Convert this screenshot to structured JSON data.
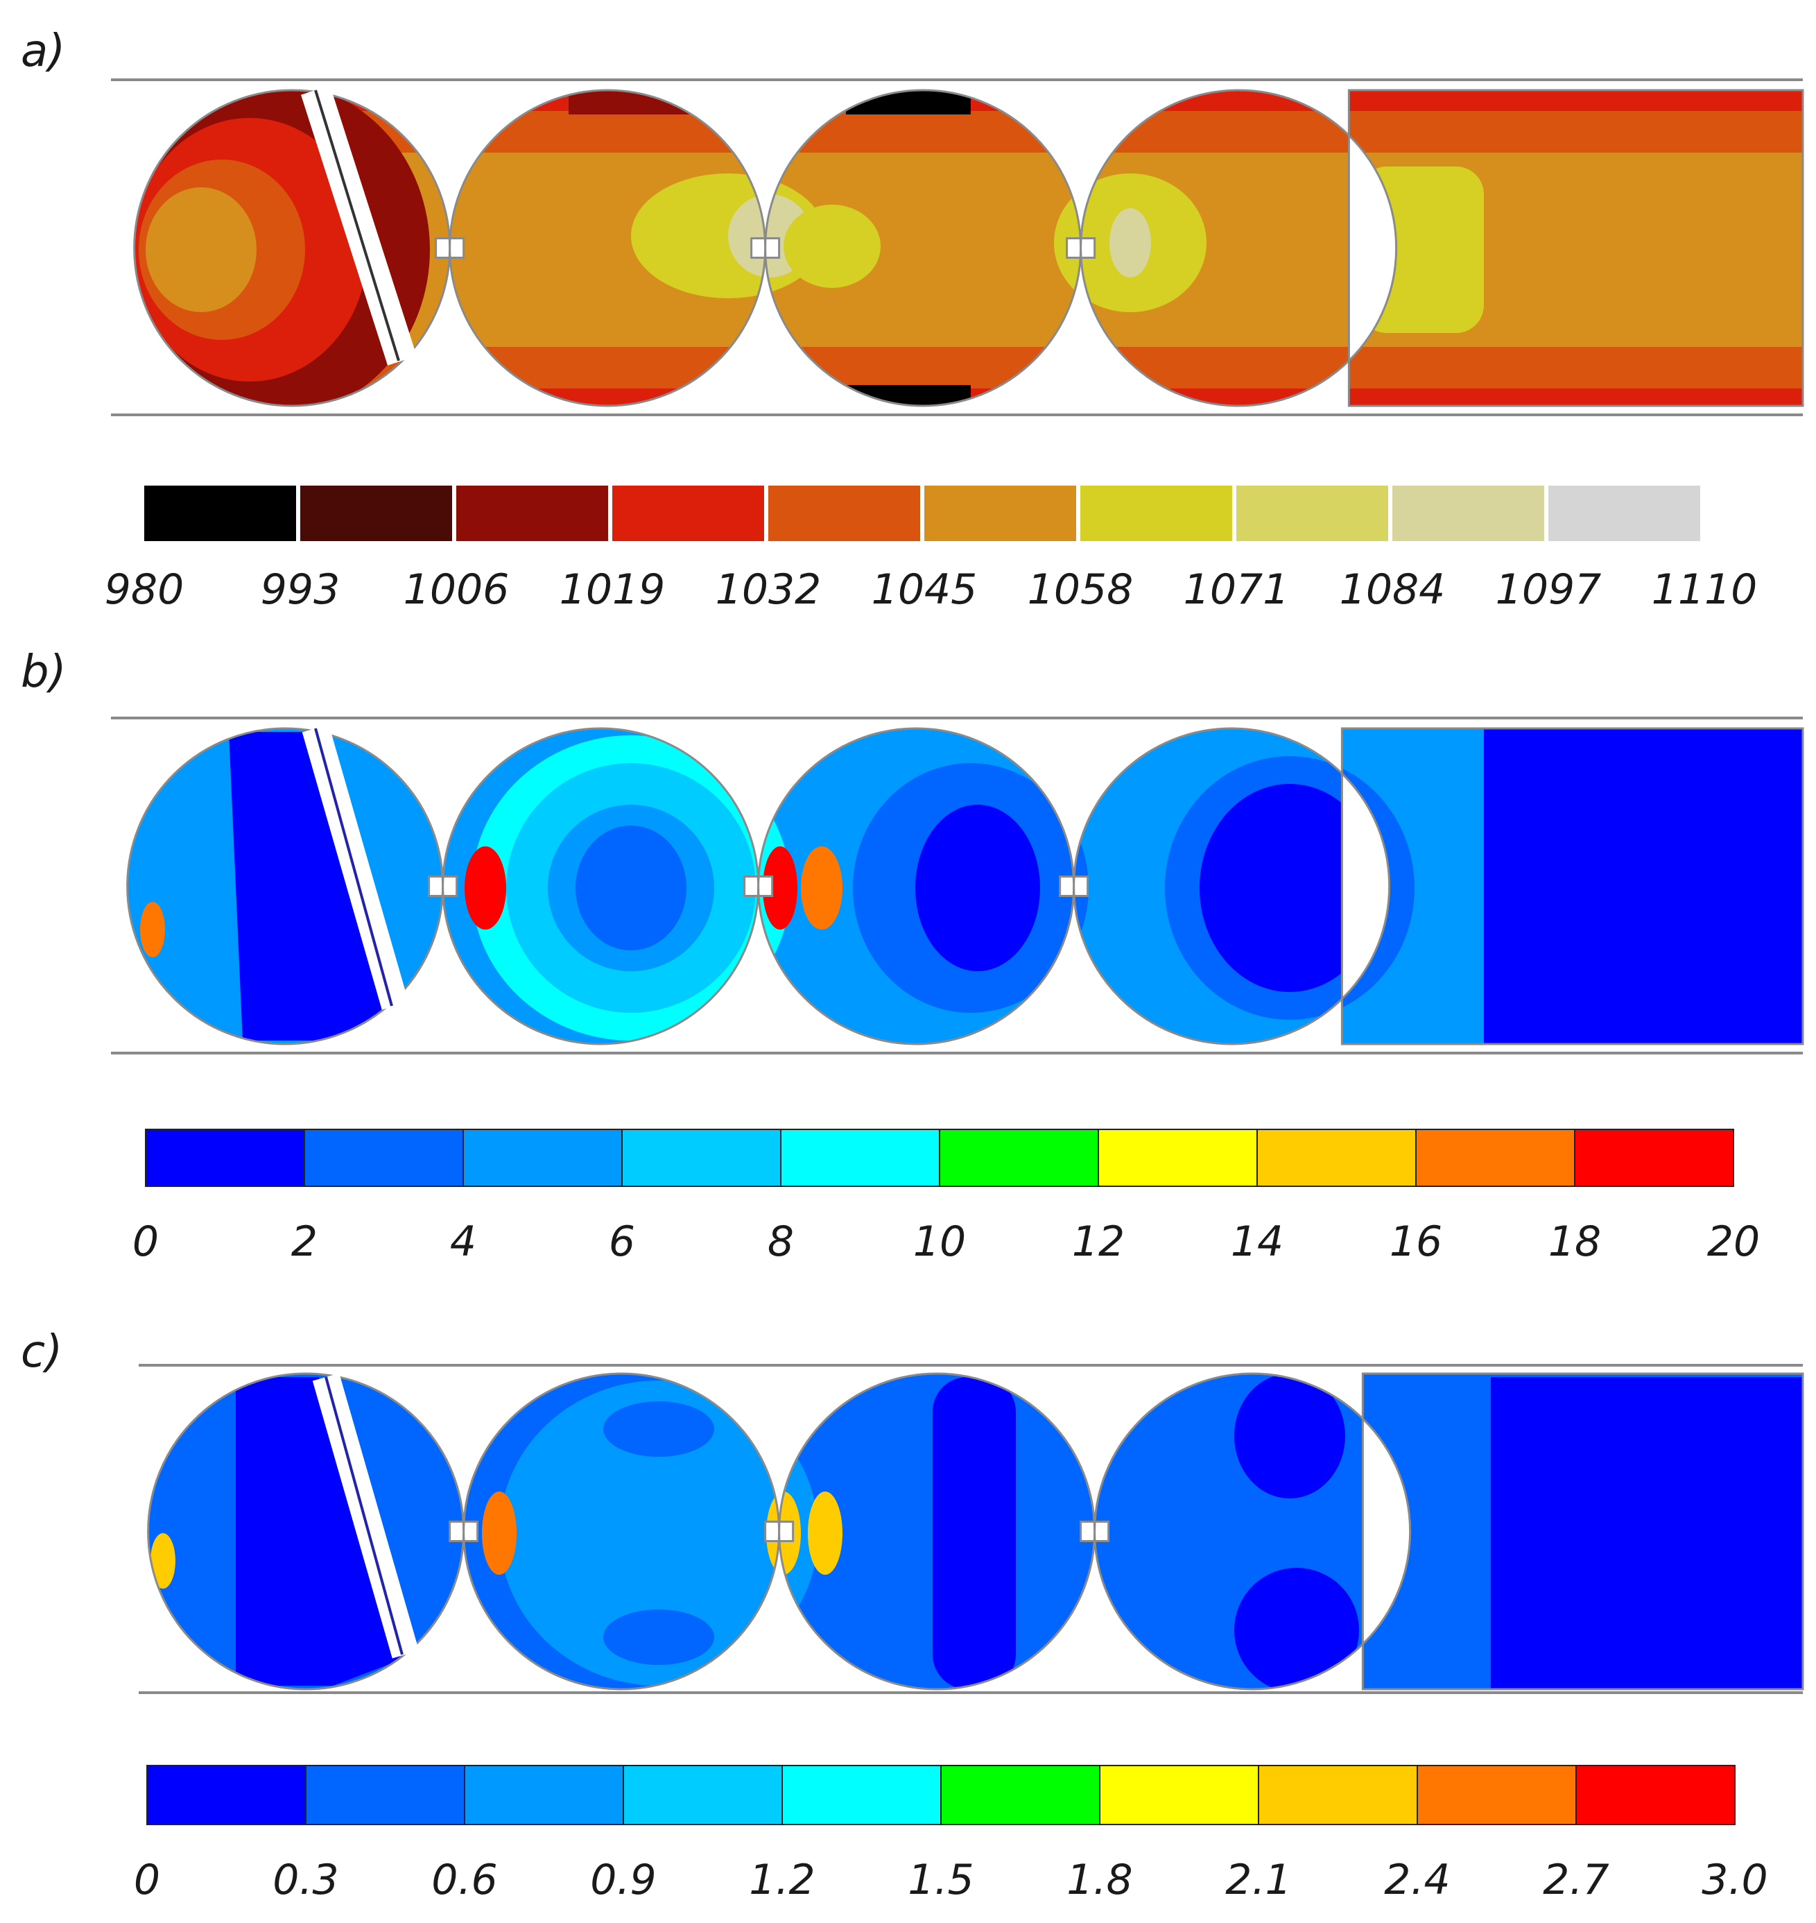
{
  "panels": [
    {
      "label": "a)",
      "quantity": "contour field",
      "colors": [
        "#000000",
        "#4a0a05",
        "#8e0e07",
        "#dc1f0a",
        "#d8540f",
        "#d68f1d",
        "#d6cf24",
        "#d7d462",
        "#d7d59b",
        "#d5d5d5"
      ],
      "ticks": [
        "980",
        "993",
        "1006",
        "1019",
        "1032",
        "1045",
        "1058",
        "1071",
        "1084",
        "1097",
        "1110"
      ]
    },
    {
      "label": "b)",
      "quantity": "contour field",
      "colors": [
        "#0000ff",
        "#0066ff",
        "#0099ff",
        "#00ccff",
        "#00ffff",
        "#00ff00",
        "#ffff00",
        "#ffcc00",
        "#ff7700",
        "#ff0000"
      ],
      "ticks": [
        "0",
        "2",
        "4",
        "6",
        "8",
        "10",
        "12",
        "14",
        "16",
        "18",
        "20"
      ]
    },
    {
      "label": "c)",
      "quantity": "contour field",
      "colors": [
        "#0000ff",
        "#0066ff",
        "#0099ff",
        "#00ccff",
        "#00ffff",
        "#00ff00",
        "#ffff00",
        "#ffcc00",
        "#ff7700",
        "#ff0000"
      ],
      "ticks": [
        "0",
        "0.3",
        "0.6",
        "0.9",
        "1.2",
        "1.5",
        "1.8",
        "2.1",
        "2.4",
        "2.7",
        "3.0"
      ]
    }
  ]
}
